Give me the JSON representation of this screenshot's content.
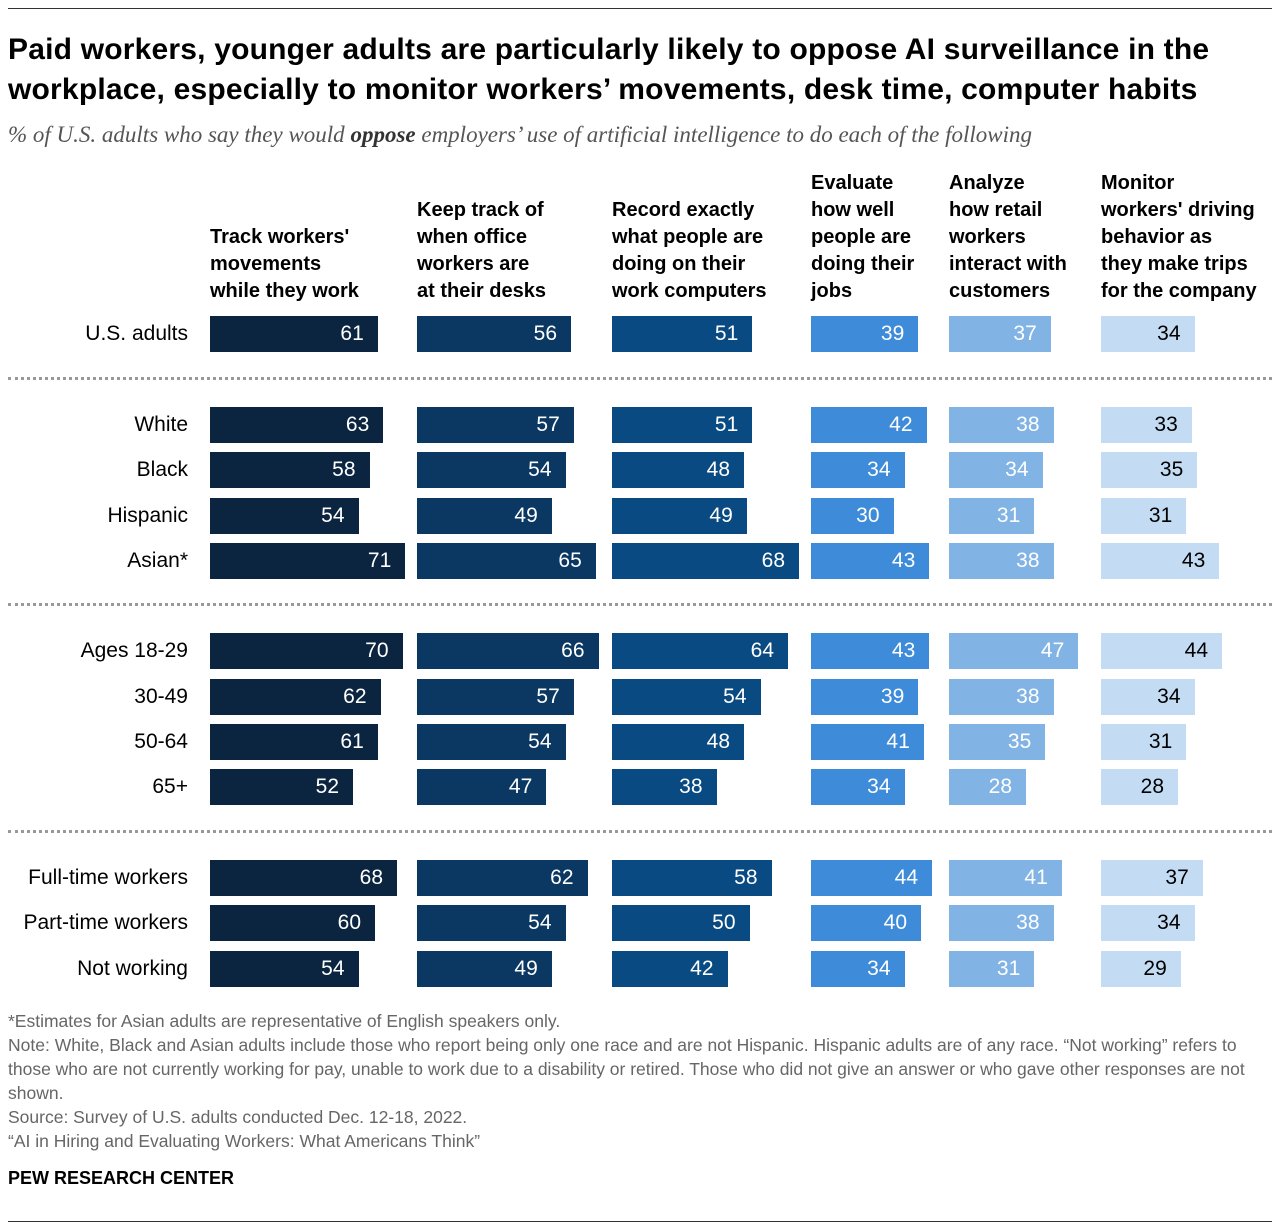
{
  "title": "Paid workers, younger adults are particularly likely to oppose AI surveillance in the workplace, especially to monitor workers’ movements, desk time, computer habits",
  "subtitle_pre": "% of U.S. adults who say they would ",
  "subtitle_bold": "oppose",
  "subtitle_post": " employers’ use of artificial intelligence to do each of the following",
  "chart_data": {
    "type": "bar",
    "orientation": "horizontal",
    "categories": [
      "U.S. adults",
      "White",
      "Black",
      "Hispanic",
      "Asian*",
      "Ages 18-29",
      "30-49",
      "50-64",
      "65+",
      "Full-time workers",
      "Part-time workers",
      "Not working"
    ],
    "series": [
      {
        "name": "Track workers' movements while they work",
        "color": "#0b2540",
        "values": [
          61,
          63,
          58,
          54,
          71,
          70,
          62,
          61,
          52,
          68,
          60,
          54
        ]
      },
      {
        "name": "Keep track of when office workers are at their desks",
        "color": "#0a3862",
        "values": [
          56,
          57,
          54,
          49,
          65,
          66,
          57,
          54,
          47,
          62,
          54,
          49
        ]
      },
      {
        "name": "Record exactly what people are doing on their work computers",
        "color": "#0a4a82",
        "values": [
          51,
          51,
          48,
          49,
          68,
          64,
          54,
          48,
          38,
          58,
          50,
          42
        ]
      },
      {
        "name": "Evaluate how well people are doing their jobs",
        "color": "#3d8bd9",
        "values": [
          39,
          42,
          34,
          30,
          43,
          43,
          39,
          41,
          34,
          44,
          40,
          34
        ]
      },
      {
        "name": "Analyze how retail workers interact with customers",
        "color": "#82b3e5",
        "values": [
          37,
          38,
          34,
          31,
          38,
          47,
          38,
          35,
          28,
          41,
          38,
          31
        ]
      },
      {
        "name": "Monitor workers' driving behavior as they make trips for the company",
        "color": "#c3dcf3",
        "values": [
          34,
          33,
          35,
          31,
          43,
          44,
          34,
          31,
          28,
          37,
          34,
          29
        ]
      }
    ]
  },
  "notes": [
    "*Estimates for Asian adults are representative of English speakers only.",
    "Note: White, Black and Asian adults include those who report being only one race and are not Hispanic. Hispanic adults are of any race. “Not working” refers to those who are not currently working for pay, unable to work due to a disability or retired. Those who did not give an answer or who gave other responses are not shown.",
    "Source: Survey of U.S. adults conducted Dec. 12-18, 2022.",
    "“AI in Hiring and Evaluating Workers: What Americans Think”"
  ],
  "brand": "PEW RESEARCH CENTER"
}
